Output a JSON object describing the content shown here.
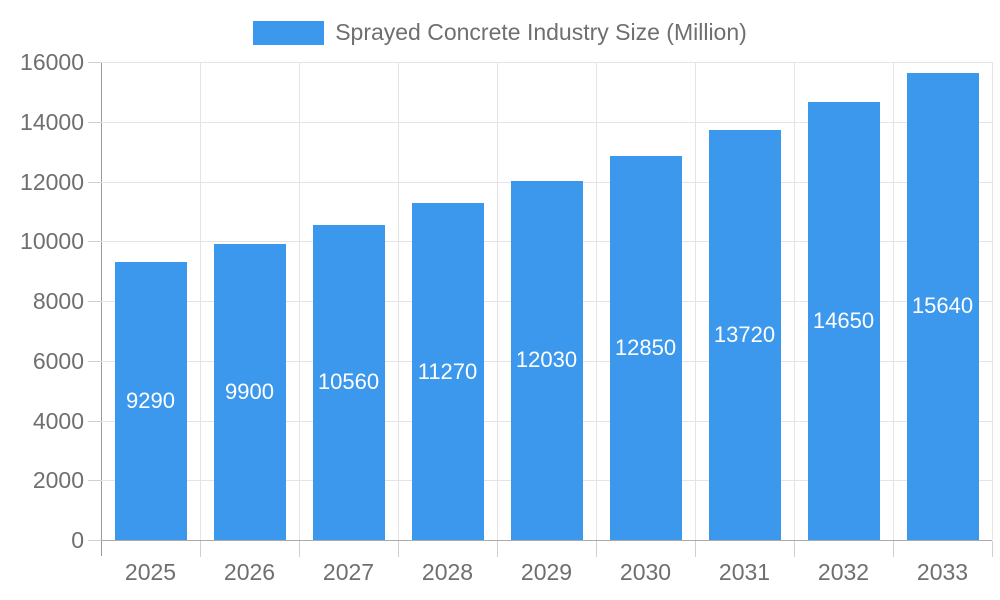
{
  "chart_data": {
    "type": "bar",
    "title": "Sprayed Concrete Industry Size (Million)",
    "legend_label": "Sprayed Concrete Industry Size (Million)",
    "legend_position": "top",
    "categories": [
      "2025",
      "2026",
      "2027",
      "2028",
      "2029",
      "2030",
      "2031",
      "2032",
      "2033"
    ],
    "values": [
      9290,
      9900,
      10560,
      11270,
      12030,
      12850,
      13720,
      14650,
      15640
    ],
    "bar_labels": [
      "9290",
      "9900",
      "10560",
      "11270",
      "12030",
      "12850",
      "13720",
      "14650",
      "15640"
    ],
    "xlabel": "",
    "ylabel": "",
    "ylim": [
      0,
      16000
    ],
    "ytick_step": 2000,
    "yticks": [
      0,
      2000,
      4000,
      6000,
      8000,
      10000,
      12000,
      14000,
      16000
    ],
    "ytick_labels": [
      "0",
      "2000",
      "4000",
      "6000",
      "8000",
      "10000",
      "12000",
      "14000",
      "16000"
    ],
    "grid": true,
    "colors": {
      "bar": "#3b98ec",
      "grid": "#e4e4e4",
      "axis_y": "#9a9a9a",
      "axis_x": "#ababab",
      "tick": "#cfcfcf",
      "label": "#6f6f6f",
      "bar_label": "#ffffff",
      "background": "#ffffff"
    }
  }
}
